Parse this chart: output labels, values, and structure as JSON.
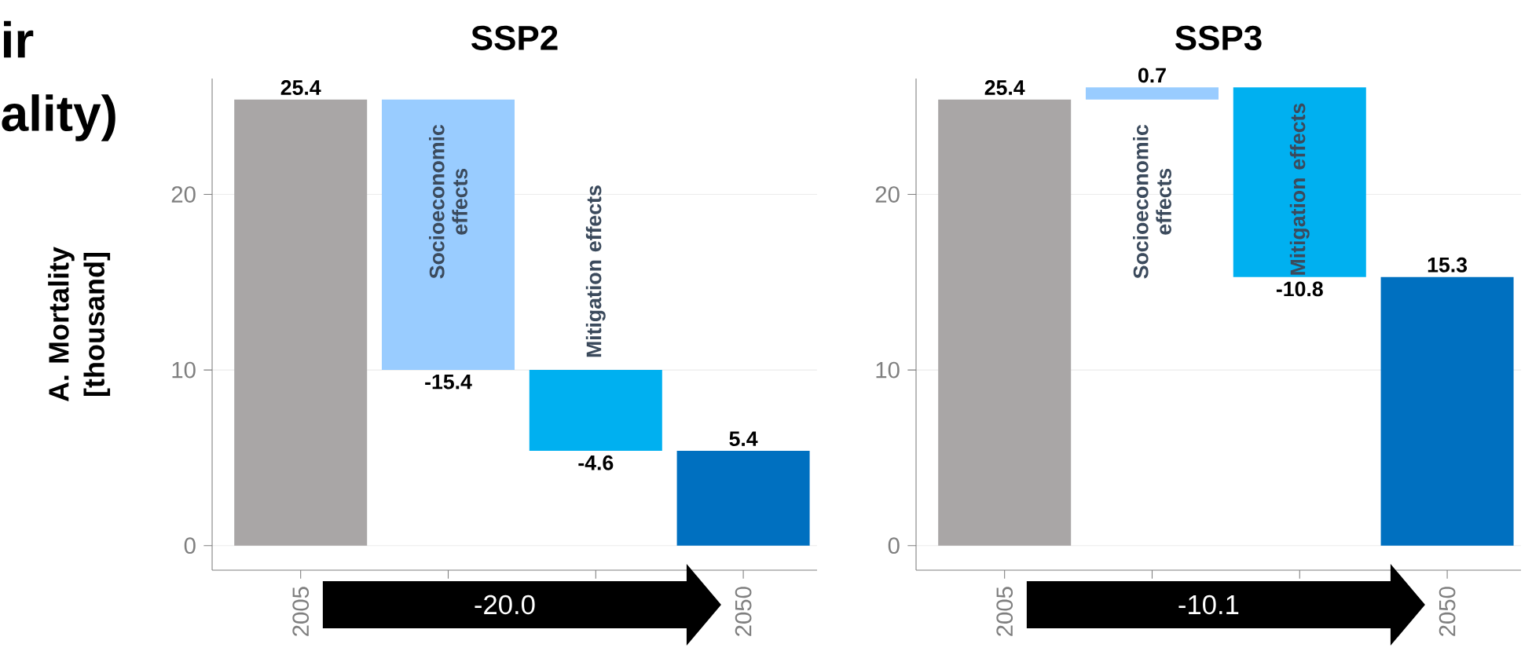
{
  "chart_data": [
    {
      "type": "bar",
      "title": "SSP2",
      "ylabel": "A. Mortality [thousand]",
      "categories": [
        "2005",
        null,
        null,
        "2050"
      ],
      "values": [
        25.4,
        -15.4,
        -4.6,
        5.4
      ],
      "base": [
        0,
        25.4,
        10.0,
        0
      ],
      "colors": [
        "#a9a6a6",
        "#99ccff",
        "#00b0f0",
        "#0070c0"
      ],
      "ylim": [
        -1.4,
        26.6
      ],
      "yticks": [
        0,
        10,
        20
      ],
      "grid": "y",
      "data_labels": true,
      "annotations": [
        "ir",
        "ality)",
        "Socioeconomic effects",
        "Mitigation effects",
        "-20.0"
      ]
    },
    {
      "type": "bar",
      "title": "SSP3",
      "categories": [
        "2005",
        null,
        null,
        "2050"
      ],
      "values": [
        25.4,
        0.7,
        -10.8,
        15.3
      ],
      "base": [
        0,
        25.4,
        26.1,
        0
      ],
      "colors": [
        "#a9a6a6",
        "#99ccff",
        "#00b0f0",
        "#0070c0"
      ],
      "ylim": [
        -1.4,
        26.6
      ],
      "yticks": [
        0,
        10,
        20
      ],
      "grid": "y",
      "data_labels": true,
      "annotations": [
        "Socioeconomic effects",
        "Mitigation effects",
        "-10.1"
      ]
    }
  ]
}
